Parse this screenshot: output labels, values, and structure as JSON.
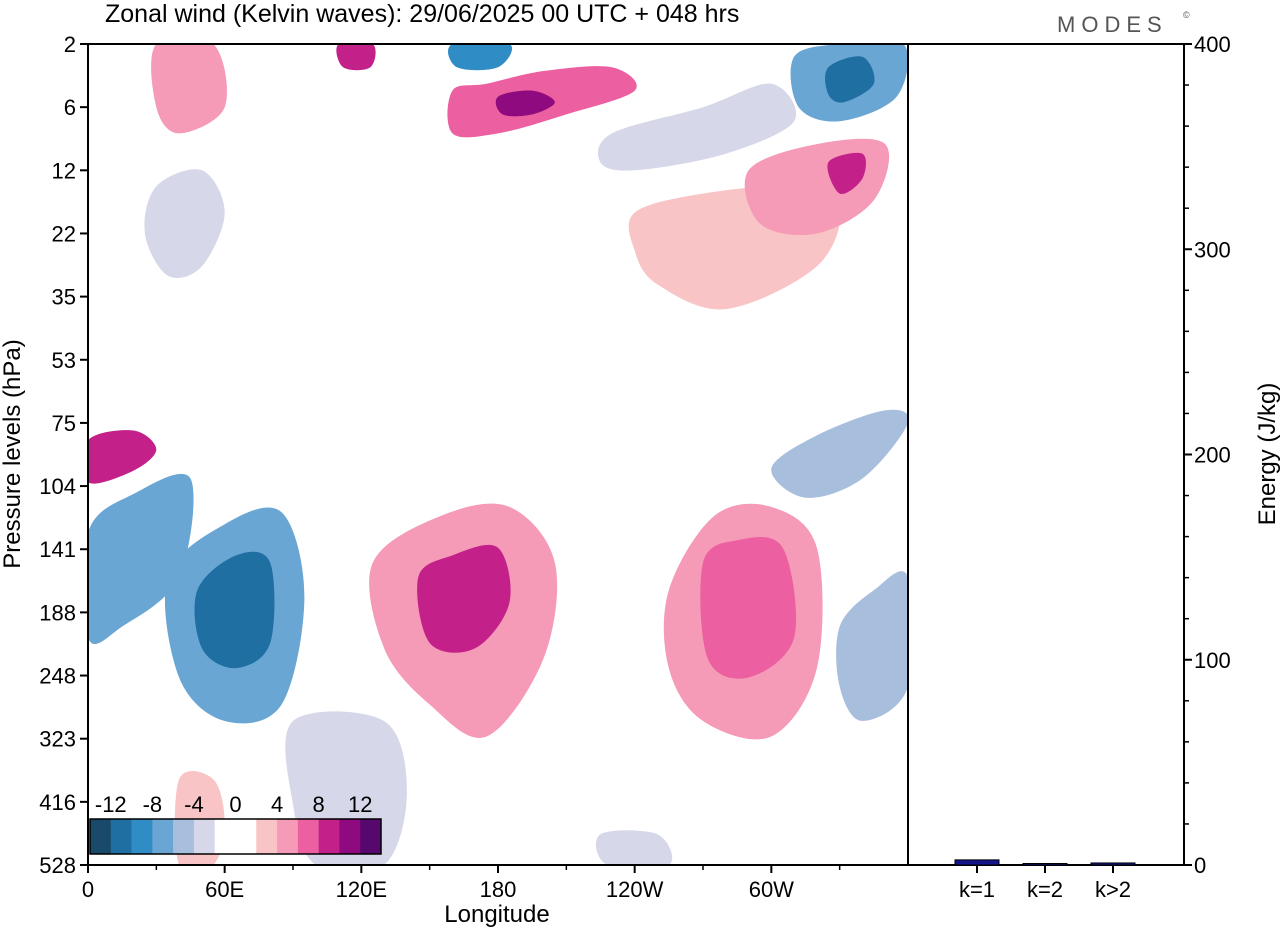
{
  "chart_data": [
    {
      "type": "heatmap",
      "title": "Zonal wind (Kelvin waves):  29/06/2025  00 UTC  + 048 hrs",
      "brand": "MODES",
      "brand_mark": "©",
      "xlabel": "Longitude",
      "ylabel": "Pressure levels (hPa)",
      "x_ticks": [
        "0",
        "60E",
        "120E",
        "180",
        "120W",
        "60W"
      ],
      "x_tick_values": [
        0,
        60,
        120,
        180,
        240,
        300
      ],
      "xlim": [
        0,
        360
      ],
      "y_ticks": [
        "2",
        "6",
        "12",
        "22",
        "35",
        "53",
        "75",
        "104",
        "141",
        "188",
        "248",
        "323",
        "416",
        "528"
      ],
      "y_scale": "model levels (top 2 hPa, bottom 528 hPa)",
      "colorbar": {
        "labels": [
          "-12",
          "-8",
          "-4",
          "0",
          "4",
          "8",
          "12"
        ],
        "colors": [
          "#1a4a6a",
          "#1f6fa3",
          "#2f8cc4",
          "#6aa6d4",
          "#a8bedd",
          "#d6d8ea",
          "#ffffff",
          "#ffffff",
          "#f8c4c6",
          "#f59ab7",
          "#ec5fa0",
          "#c4208a",
          "#8e0a7e",
          "#56086e"
        ]
      },
      "contour_regions": [
        {
          "name": "upper-pink-band",
          "value": 7,
          "points": [
            [
              160,
              4.5
            ],
            [
              175,
              4
            ],
            [
              200,
              3.2
            ],
            [
              230,
              3
            ],
            [
              240,
              4.5
            ],
            [
              210,
              6.5
            ],
            [
              180,
              8
            ],
            [
              160,
              8
            ]
          ]
        },
        {
          "name": "upper-pink-core",
          "value": 10,
          "points": [
            [
              180,
              5
            ],
            [
              195,
              4.5
            ],
            [
              205,
              5.5
            ],
            [
              195,
              6.5
            ],
            [
              182,
              6.5
            ]
          ]
        },
        {
          "name": "upper-blue-east",
          "value": -8,
          "points": [
            [
              310,
              2.5
            ],
            [
              330,
              2
            ],
            [
              358,
              2
            ],
            [
              355,
              5
            ],
            [
              330,
              7
            ],
            [
              312,
              6
            ]
          ]
        },
        {
          "name": "upper-blue-core",
          "value": -11,
          "points": [
            [
              325,
              3
            ],
            [
              340,
              2.5
            ],
            [
              345,
              4
            ],
            [
              332,
              5.5
            ],
            [
              325,
              4.8
            ]
          ]
        },
        {
          "name": "upper-blue-band",
          "value": -4,
          "points": [
            [
              230,
              8
            ],
            [
              270,
              6
            ],
            [
              300,
              4
            ],
            [
              310,
              7
            ],
            [
              280,
              10
            ],
            [
              240,
              12
            ],
            [
              225,
              11
            ]
          ]
        },
        {
          "name": "upper-pink-east",
          "value": 5,
          "points": [
            [
              290,
              12
            ],
            [
              320,
              9
            ],
            [
              350,
              9
            ],
            [
              345,
              16
            ],
            [
              320,
              22
            ],
            [
              295,
              20
            ]
          ]
        },
        {
          "name": "upper-pink-east-core",
          "value": 9,
          "points": [
            [
              325,
              11
            ],
            [
              340,
              10
            ],
            [
              340,
              13
            ],
            [
              330,
              15
            ]
          ]
        },
        {
          "name": "mid-pink-plume",
          "value": 3,
          "points": [
            [
              240,
              18
            ],
            [
              270,
              15
            ],
            [
              310,
              14
            ],
            [
              330,
              17
            ],
            [
              320,
              28
            ],
            [
              280,
              38
            ],
            [
              250,
              32
            ],
            [
              240,
              25
            ]
          ]
        },
        {
          "name": "top-left-blue-streak",
          "value": -4,
          "points": [
            [
              30,
              14
            ],
            [
              50,
              12
            ],
            [
              60,
              18
            ],
            [
              50,
              28
            ],
            [
              35,
              30
            ],
            [
              25,
              22
            ]
          ]
        },
        {
          "name": "top-pink-streaks",
          "value": 4,
          "points": [
            [
              30,
              2
            ],
            [
              55,
              2
            ],
            [
              60,
              6
            ],
            [
              40,
              8
            ],
            [
              30,
              6
            ]
          ]
        },
        {
          "name": "top-pink-120E",
          "value": 9,
          "points": [
            [
              110,
              2
            ],
            [
              125,
              2
            ],
            [
              124,
              3
            ],
            [
              112,
              3
            ]
          ]
        },
        {
          "name": "top-blue-165E",
          "value": -9,
          "points": [
            [
              160,
              2
            ],
            [
              185,
              2
            ],
            [
              180,
              3
            ],
            [
              162,
              3
            ]
          ]
        },
        {
          "name": "low-left-pink",
          "value": 8,
          "points": [
            [
              0,
              82
            ],
            [
              20,
              78
            ],
            [
              30,
              86
            ],
            [
              20,
              96
            ],
            [
              0,
              102
            ]
          ]
        },
        {
          "name": "low-left-blue-band",
          "value": -8,
          "points": [
            [
              0,
              130
            ],
            [
              20,
              108
            ],
            [
              45,
              100
            ],
            [
              40,
              160
            ],
            [
              15,
              200
            ],
            [
              0,
              210
            ]
          ]
        },
        {
          "name": "deep-blue-region",
          "value": -8,
          "points": [
            [
              35,
              160
            ],
            [
              60,
              125
            ],
            [
              85,
              118
            ],
            [
              95,
              175
            ],
            [
              85,
              280
            ],
            [
              60,
              300
            ],
            [
              40,
              250
            ]
          ]
        },
        {
          "name": "deep-blue-core",
          "value": -12,
          "points": [
            [
              48,
              170
            ],
            [
              65,
              145
            ],
            [
              80,
              150
            ],
            [
              80,
              215
            ],
            [
              65,
              240
            ],
            [
              50,
              220
            ]
          ]
        },
        {
          "name": "pink-150E-region",
          "value": 4,
          "points": [
            [
              125,
              150
            ],
            [
              155,
              120
            ],
            [
              185,
              115
            ],
            [
              205,
              150
            ],
            [
              200,
              230
            ],
            [
              175,
              320
            ],
            [
              150,
              280
            ],
            [
              130,
              220
            ]
          ]
        },
        {
          "name": "pink-150E-core",
          "value": 9,
          "points": [
            [
              145,
              160
            ],
            [
              160,
              145
            ],
            [
              180,
              140
            ],
            [
              185,
              180
            ],
            [
              170,
              220
            ],
            [
              150,
              215
            ]
          ]
        },
        {
          "name": "pink-80W-region",
          "value": 5,
          "points": [
            [
              255,
              170
            ],
            [
              275,
              120
            ],
            [
              300,
              115
            ],
            [
              320,
              140
            ],
            [
              320,
              240
            ],
            [
              300,
              320
            ],
            [
              270,
              300
            ],
            [
              255,
              240
            ]
          ]
        },
        {
          "name": "pink-80W-core",
          "value": 7,
          "points": [
            [
              270,
              150
            ],
            [
              285,
              135
            ],
            [
              305,
              140
            ],
            [
              310,
              210
            ],
            [
              290,
              250
            ],
            [
              272,
              230
            ]
          ]
        },
        {
          "name": "right-blue-low",
          "value": -5,
          "points": [
            [
              330,
              200
            ],
            [
              345,
              170
            ],
            [
              360,
              160
            ],
            [
              360,
              260
            ],
            [
              340,
              300
            ],
            [
              330,
              260
            ]
          ]
        },
        {
          "name": "right-blue-mid",
          "value": -6,
          "points": [
            [
              300,
              95
            ],
            [
              320,
              80
            ],
            [
              350,
              70
            ],
            [
              360,
              75
            ],
            [
              340,
              100
            ],
            [
              315,
              110
            ]
          ]
        },
        {
          "name": "bottom-pink-column",
          "value": 3,
          "points": [
            [
              40,
              380
            ],
            [
              55,
              380
            ],
            [
              60,
              450
            ],
            [
              55,
              528
            ],
            [
              40,
              528
            ]
          ]
        },
        {
          "name": "bottom-blue-column",
          "value": -4,
          "points": [
            [
              90,
              300
            ],
            [
              130,
              300
            ],
            [
              140,
              400
            ],
            [
              130,
              528
            ],
            [
              100,
              528
            ],
            [
              90,
              420
            ]
          ]
        },
        {
          "name": "bottom-blue-patch",
          "value": -4,
          "points": [
            [
              225,
              470
            ],
            [
              250,
              470
            ],
            [
              255,
              528
            ],
            [
              228,
              528
            ]
          ]
        }
      ]
    },
    {
      "type": "bar",
      "categories": [
        "k=1",
        "k=2",
        "k>2"
      ],
      "values": [
        2.5,
        0.5,
        1.0
      ],
      "ylabel": "Energy (J/kg)",
      "y_ticks": [
        "0",
        "100",
        "200",
        "300",
        "400"
      ],
      "ylim": [
        0,
        400
      ],
      "bar_color": "#14148c"
    }
  ]
}
